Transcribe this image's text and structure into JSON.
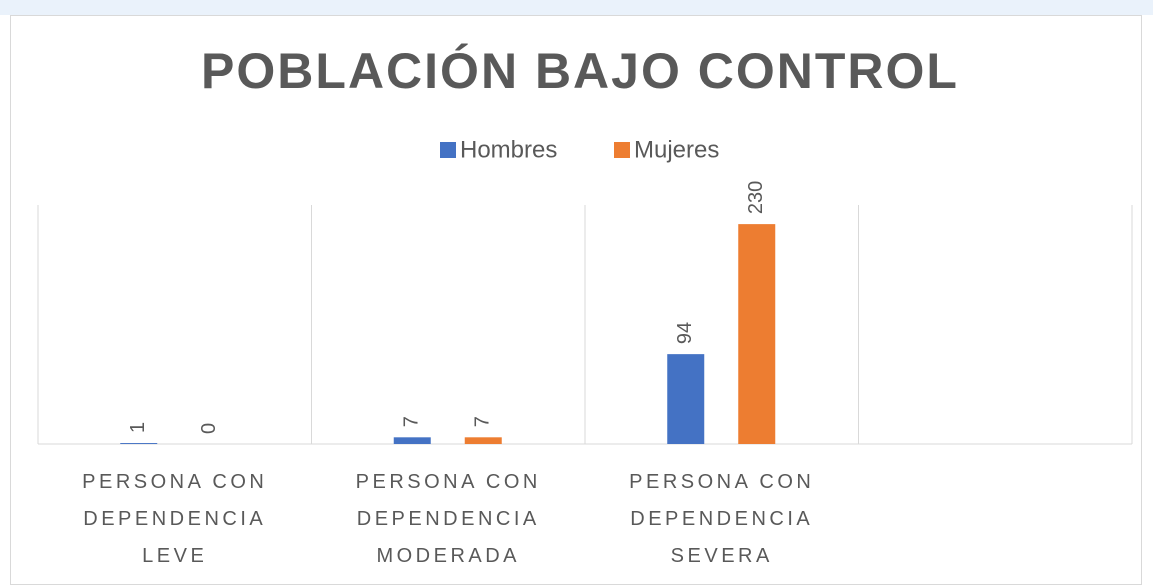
{
  "chart_data": {
    "type": "bar",
    "title": "POBLACIÓN BAJO CONTROL",
    "categories": [
      "PERSONA CON DEPENDENCIA LEVE",
      "PERSONA CON DEPENDENCIA MODERADA",
      "PERSONA CON DEPENDENCIA SEVERA",
      null
    ],
    "series": [
      {
        "name": "Hombres",
        "color": "#4472c4",
        "values": [
          1,
          7,
          94,
          null
        ]
      },
      {
        "name": "Mujeres",
        "color": "#ed7d31",
        "values": [
          0,
          7,
          230,
          null
        ]
      }
    ],
    "ylim": [
      0,
      250
    ],
    "legend": "top"
  }
}
